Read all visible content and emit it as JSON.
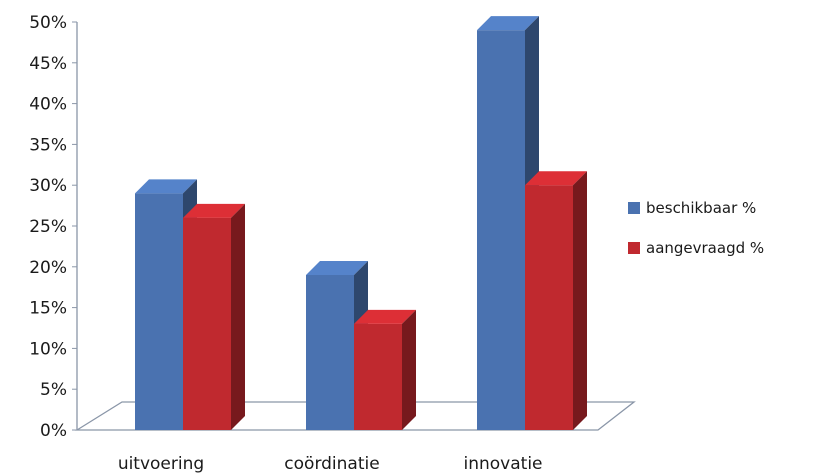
{
  "chart_data": {
    "type": "bar",
    "title": "",
    "xlabel": "",
    "ylabel": "",
    "categories": [
      "uitvoering",
      "coördinatie",
      "innovatie"
    ],
    "series": [
      {
        "name": "beschikbaar %",
        "values": [
          29,
          19,
          49
        ],
        "color": "#4a72b0"
      },
      {
        "name": "aangevraagd %",
        "values": [
          26,
          13,
          30
        ],
        "color": "#c0292f"
      }
    ],
    "ylim": [
      0,
      50
    ],
    "yticks": [
      0,
      5,
      10,
      15,
      20,
      25,
      30,
      35,
      40,
      45,
      50
    ],
    "ytick_labels": [
      "0%",
      "5%",
      "10%",
      "15%",
      "20%",
      "25%",
      "30%",
      "35%",
      "40%",
      "45%",
      "50%"
    ],
    "grid": false,
    "legend_position": "right",
    "style": "3d-clustered-column"
  }
}
